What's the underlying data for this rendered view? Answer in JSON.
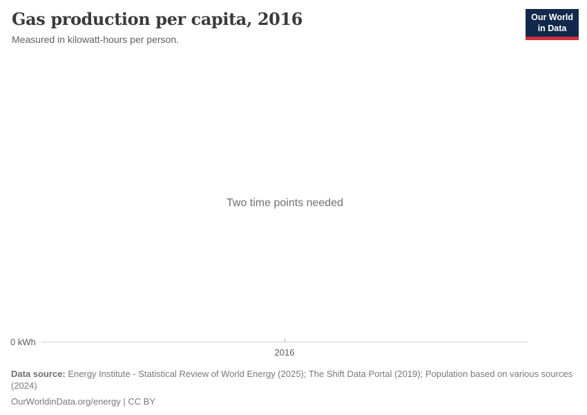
{
  "header": {
    "title": "Gas production per capita, 2016",
    "subtitle": "Measured in kilowatt-hours per person.",
    "logo": {
      "line1": "Our World",
      "line2": "in Data"
    }
  },
  "chart": {
    "message": "Two time points needed",
    "y_axis_label": "0 kWh",
    "x_tick_label": "2016"
  },
  "chart_data": {
    "type": "line",
    "title": "Gas production per capita, 2016",
    "subtitle": "Measured in kilowatt-hours per person.",
    "series": [],
    "x": [],
    "x_ticks": [
      "2016"
    ],
    "y_ticks": [
      "0 kWh"
    ],
    "ylabel": "kilowatt-hours per person",
    "ylim_min_label": "0 kWh",
    "grid": false,
    "legend_position": "none",
    "annotation": "Two time points needed",
    "note": "Empty chart placeholder - no data series plotted; single x tick at 2016 and y baseline at 0 kWh"
  },
  "footer": {
    "data_source_label": "Data source:",
    "data_source_text": " Energy Institute - Statistical Review of World Energy (2025); The Shift Data Portal (2019); Population based on various sources (2024)",
    "link_line": "OurWorldinData.org/energy | CC BY"
  },
  "colors": {
    "logo_navy": "#12294b",
    "logo_red": "#cf303b",
    "axis_line": "#d1d1d1",
    "title_text": "#3a3a3a",
    "muted_text": "#787878"
  }
}
